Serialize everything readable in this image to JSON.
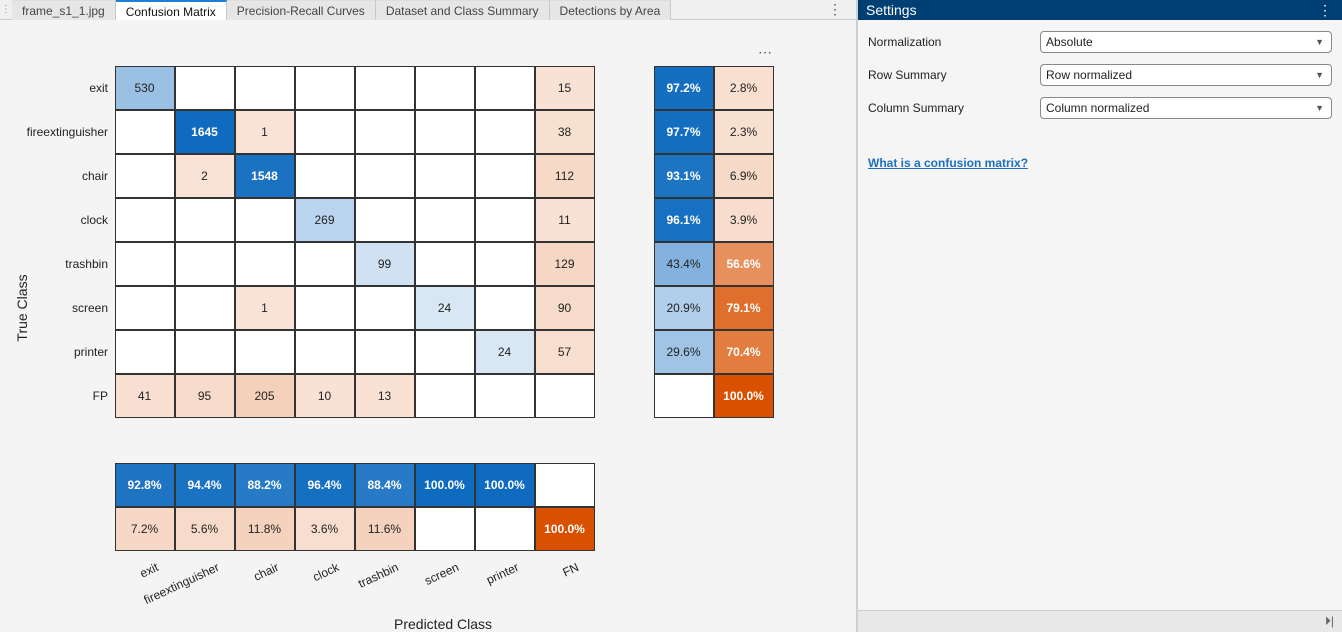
{
  "tabs": [
    {
      "label": "frame_s1_1.jpg"
    },
    {
      "label": "Confusion Matrix",
      "active": true
    },
    {
      "label": "Precision-Recall Curves"
    },
    {
      "label": "Dataset and Class Summary"
    },
    {
      "label": "Detections by Area"
    }
  ],
  "chart_data": {
    "type": "heatmap",
    "ylabel": "True Class",
    "xlabel": "Predicted Class",
    "row_labels": [
      "exit",
      "fireextinguisher",
      "chair",
      "clock",
      "trashbin",
      "screen",
      "printer",
      "FP"
    ],
    "col_labels": [
      "exit",
      "fireextinguisher",
      "chair",
      "clock",
      "trashbin",
      "screen",
      "printer",
      "FN"
    ],
    "matrix": [
      [
        530,
        null,
        null,
        null,
        null,
        null,
        null,
        15
      ],
      [
        null,
        1645,
        1,
        null,
        null,
        null,
        null,
        38
      ],
      [
        null,
        2,
        1548,
        null,
        null,
        null,
        null,
        112
      ],
      [
        null,
        null,
        null,
        269,
        null,
        null,
        null,
        11
      ],
      [
        null,
        null,
        null,
        null,
        99,
        null,
        null,
        129
      ],
      [
        null,
        null,
        1,
        null,
        null,
        24,
        null,
        90
      ],
      [
        null,
        null,
        null,
        null,
        null,
        null,
        24,
        57
      ],
      [
        41,
        95,
        205,
        10,
        13,
        null,
        null,
        null
      ]
    ],
    "row_summary": [
      [
        97.2,
        2.8
      ],
      [
        97.7,
        2.3
      ],
      [
        93.1,
        6.9
      ],
      [
        96.1,
        3.9
      ],
      [
        43.4,
        56.6
      ],
      [
        20.9,
        79.1
      ],
      [
        29.6,
        70.4
      ],
      [
        null,
        100.0
      ]
    ],
    "column_summary": [
      [
        92.8,
        94.4,
        88.2,
        96.4,
        88.4,
        100.0,
        100.0,
        null
      ],
      [
        7.2,
        5.6,
        11.8,
        3.6,
        11.6,
        null,
        null,
        100.0
      ]
    ],
    "colors": {
      "correct": "#0f6bbf",
      "incorrect": "#d95000"
    }
  },
  "settings": {
    "title": "Settings",
    "normalization": {
      "label": "Normalization",
      "value": "Absolute"
    },
    "row_summary": {
      "label": "Row Summary",
      "value": "Row normalized"
    },
    "column_summary": {
      "label": "Column Summary",
      "value": "Column normalized"
    },
    "help_link": "What is a confusion matrix?"
  },
  "icons": {
    "more": "⋯",
    "kebab": "⋮",
    "collapse": "⏵|"
  }
}
